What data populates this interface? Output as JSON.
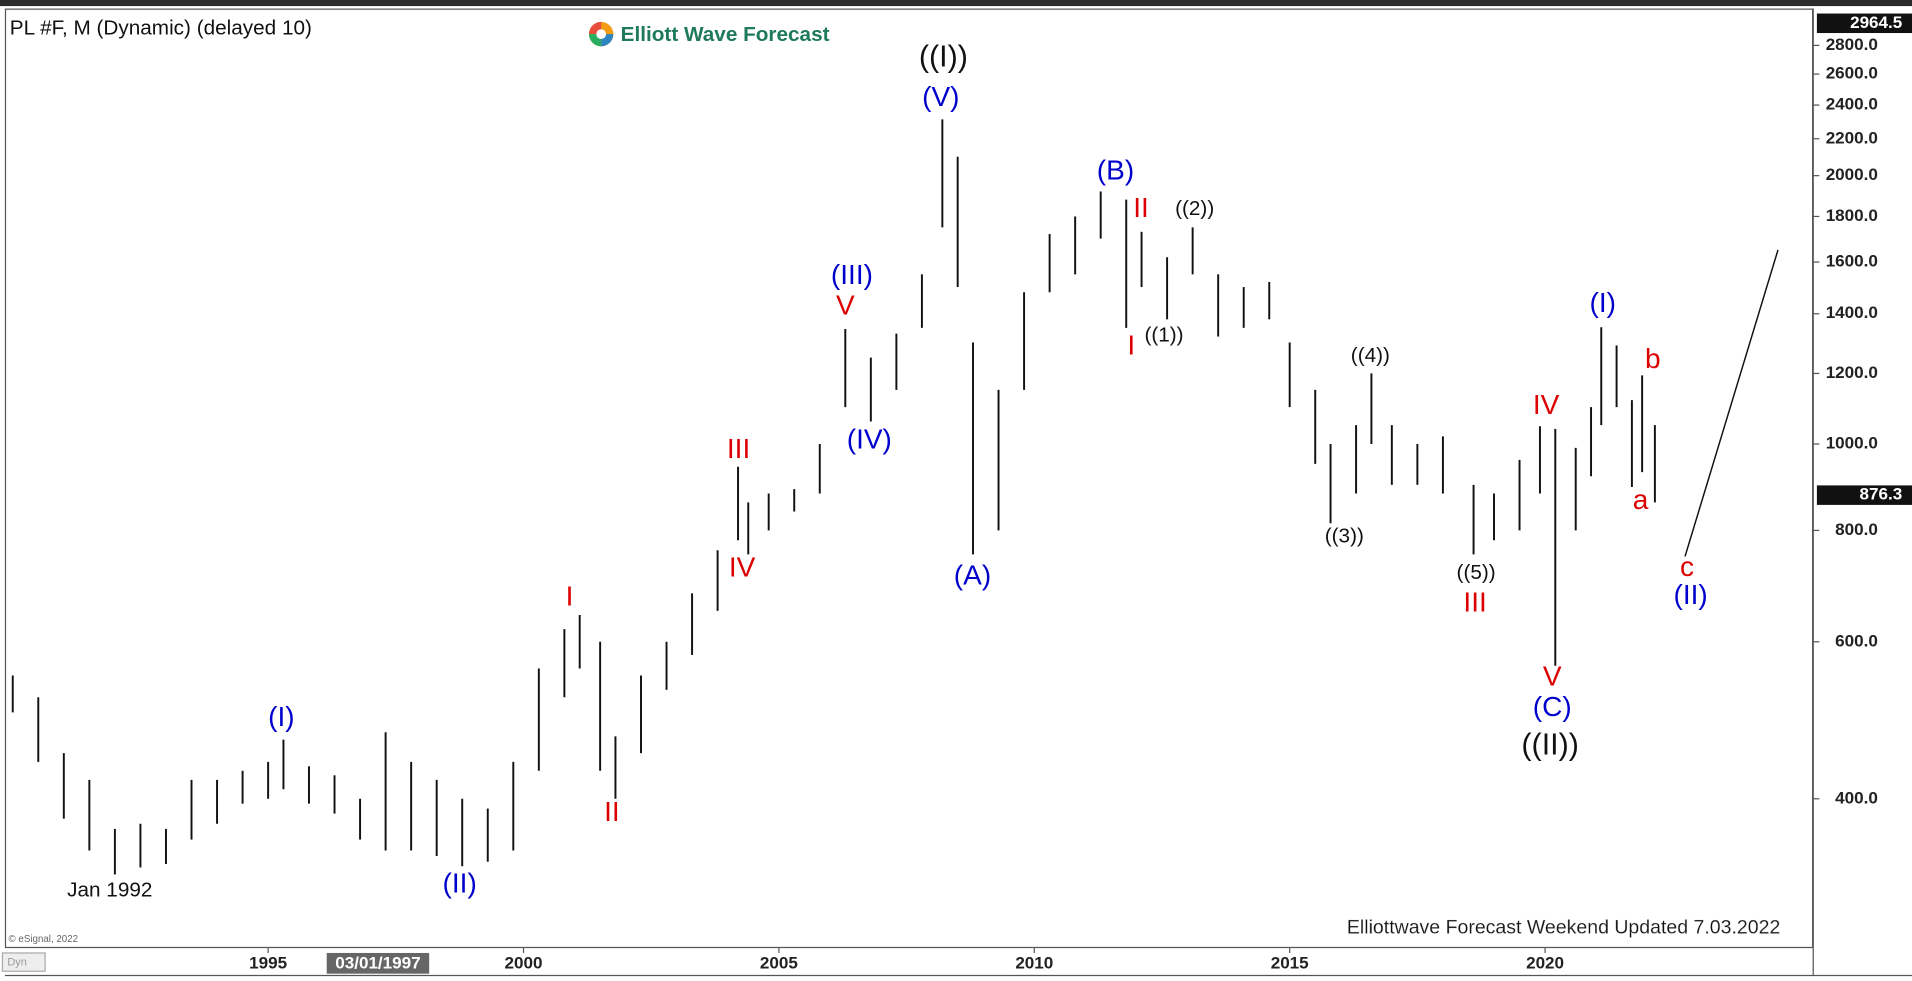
{
  "chart_data": {
    "type": "ohlc",
    "title": "PL #F, M (Dynamic) (delayed 10)",
    "logo": "Elliott Wave Forecast",
    "footer": "Elliottwave Forecast Weekend Updated 7.03.2022",
    "source": "© eSignal, 2022",
    "corner_label": "Dyn",
    "log_scale": true,
    "grid": false,
    "color": "#111111",
    "xlim": [
      1989.87,
      2025.25
    ],
    "xticks": [
      1995,
      2000,
      2005,
      2010,
      2015,
      2020
    ],
    "ylim": [
      272,
      3070
    ],
    "yticks": [
      {
        "value": 400,
        "label": "400.0"
      },
      {
        "value": 600,
        "label": "600.0"
      },
      {
        "value": 800,
        "label": "800.0"
      },
      {
        "value": 1000,
        "label": "1000.0"
      },
      {
        "value": 1200,
        "label": "1200.0"
      },
      {
        "value": 1400,
        "label": "1400.0"
      },
      {
        "value": 1600,
        "label": "1600.0"
      },
      {
        "value": 1800,
        "label": "1800.0"
      },
      {
        "value": 2000,
        "label": "2000.0"
      },
      {
        "value": 2200,
        "label": "2200.0"
      },
      {
        "value": 2400,
        "label": "2400.0"
      },
      {
        "value": 2600,
        "label": "2600.0"
      },
      {
        "value": 2800,
        "label": "2800.0"
      }
    ],
    "price_tags": [
      2964.5,
      876.3
    ],
    "cursor": {
      "label": "03/01/1997",
      "x": 1997.15
    },
    "x": [
      1990.0,
      1990.5,
      1991.0,
      1991.5,
      1992.0,
      1992.5,
      1993.0,
      1993.5,
      1994.0,
      1994.5,
      1995.0,
      1995.3,
      1995.8,
      1996.3,
      1996.8,
      1997.3,
      1997.8,
      1998.3,
      1998.8,
      1999.3,
      1999.8,
      2000.3,
      2000.8,
      2001.1,
      2001.5,
      2001.8,
      2002.3,
      2002.8,
      2003.3,
      2003.8,
      2004.2,
      2004.4,
      2004.8,
      2005.3,
      2005.8,
      2006.3,
      2006.8,
      2007.3,
      2007.8,
      2008.2,
      2008.5,
      2008.8,
      2009.3,
      2009.8,
      2010.3,
      2010.8,
      2011.3,
      2011.8,
      2012.1,
      2012.6,
      2013.1,
      2013.6,
      2014.1,
      2014.6,
      2015.0,
      2015.5,
      2015.8,
      2016.3,
      2016.6,
      2017.0,
      2017.5,
      2018.0,
      2018.6,
      2019.0,
      2019.5,
      2019.9,
      2020.2,
      2020.6,
      2020.9,
      2021.1,
      2021.4,
      2021.7,
      2021.9,
      2022.15
    ],
    "high": [
      550,
      520,
      450,
      420,
      370,
      375,
      370,
      420,
      420,
      430,
      440,
      466,
      435,
      425,
      400,
      475,
      440,
      420,
      400,
      390,
      440,
      560,
      620,
      643,
      600,
      470,
      550,
      600,
      680,
      760,
      943,
      860,
      880,
      890,
      1000,
      1346,
      1250,
      1330,
      1550,
      2313,
      2100,
      1300,
      1150,
      1480,
      1720,
      1800,
      1920,
      1880,
      1730,
      1620,
      1750,
      1550,
      1500,
      1520,
      1300,
      1150,
      1000,
      1050,
      1200,
      1050,
      1000,
      1020,
      900,
      880,
      960,
      1047,
      1040,
      990,
      1100,
      1352,
      1290,
      1120,
      1194,
      1050
    ],
    "low": [
      500,
      440,
      380,
      350,
      329,
      335,
      338,
      360,
      375,
      395,
      400,
      410,
      395,
      385,
      360,
      350,
      350,
      345,
      336,
      340,
      350,
      430,
      520,
      560,
      430,
      400,
      450,
      530,
      580,
      650,
      780,
      752,
      800,
      840,
      880,
      1100,
      1060,
      1150,
      1350,
      1750,
      1500,
      752,
      800,
      1150,
      1480,
      1550,
      1700,
      1350,
      1500,
      1380,
      1550,
      1320,
      1350,
      1380,
      1100,
      950,
      815,
      880,
      1000,
      900,
      900,
      880,
      752,
      780,
      800,
      880,
      564,
      800,
      920,
      1050,
      1100,
      895,
      930,
      860
    ],
    "projection": {
      "x": [
        2022.74,
        2024.56
      ],
      "values": [
        748,
        1651
      ]
    },
    "annotations": [
      {
        "text": "(I)",
        "x": 1995.26,
        "y": 492,
        "color": "#0000cc"
      },
      {
        "text": "(II)",
        "x": 1998.75,
        "y": 320,
        "color": "#0000cc"
      },
      {
        "text": "I",
        "x": 2000.9,
        "y": 672,
        "color": "#dd0000"
      },
      {
        "text": "II",
        "x": 2001.73,
        "y": 385,
        "color": "#dd0000"
      },
      {
        "text": "III",
        "x": 2004.21,
        "y": 983,
        "color": "#dd0000"
      },
      {
        "text": "IV",
        "x": 2004.28,
        "y": 724,
        "color": "#dd0000"
      },
      {
        "text": "V",
        "x": 2006.3,
        "y": 1424,
        "color": "#dd0000"
      },
      {
        "text": "(III)",
        "x": 2006.43,
        "y": 1541,
        "color": "#0000cc"
      },
      {
        "text": "(IV)",
        "x": 2006.77,
        "y": 1008,
        "color": "#0000cc"
      },
      {
        "text": "(V)",
        "x": 2008.17,
        "y": 2440,
        "color": "#0000cc"
      },
      {
        "text": "((I))",
        "x": 2008.22,
        "y": 2707,
        "color": "#111111"
      },
      {
        "text": "(A)",
        "x": 2008.79,
        "y": 709,
        "color": "#0000cc"
      },
      {
        "text": "(B)",
        "x": 2011.59,
        "y": 2019,
        "color": "#0000cc"
      },
      {
        "text": "II",
        "x": 2012.09,
        "y": 1833,
        "color": "#dd0000"
      },
      {
        "text": "((2))",
        "x": 2013.14,
        "y": 1833,
        "color": "#111111"
      },
      {
        "text": "I",
        "x": 2011.9,
        "y": 1284,
        "color": "#dd0000"
      },
      {
        "text": "((1))",
        "x": 2012.54,
        "y": 1321,
        "color": "#111111"
      },
      {
        "text": "((4))",
        "x": 2016.58,
        "y": 1253,
        "color": "#111111"
      },
      {
        "text": "((3))",
        "x": 2016.07,
        "y": 786,
        "color": "#111111"
      },
      {
        "text": "((5))",
        "x": 2018.65,
        "y": 716,
        "color": "#111111"
      },
      {
        "text": "III",
        "x": 2018.63,
        "y": 661,
        "color": "#dd0000"
      },
      {
        "text": "IV",
        "x": 2020.02,
        "y": 1101,
        "color": "#dd0000"
      },
      {
        "text": "V",
        "x": 2020.14,
        "y": 546,
        "color": "#dd0000"
      },
      {
        "text": "(C)",
        "x": 2020.14,
        "y": 505,
        "color": "#0000cc"
      },
      {
        "text": "((II))",
        "x": 2020.1,
        "y": 458,
        "color": "#111111"
      },
      {
        "text": "(I)",
        "x": 2021.13,
        "y": 1434,
        "color": "#0000cc"
      },
      {
        "text": "b",
        "x": 2022.11,
        "y": 1241,
        "color": "#dd0000"
      },
      {
        "text": "a",
        "x": 2021.87,
        "y": 862,
        "color": "#dd0000"
      },
      {
        "text": "c",
        "x": 2022.78,
        "y": 725,
        "color": "#dd0000"
      },
      {
        "text": "(II)",
        "x": 2022.85,
        "y": 674,
        "color": "#0000cc"
      },
      {
        "text": "Jan 1992",
        "x": 1991.9,
        "y": 315,
        "color": "#111111"
      }
    ]
  }
}
